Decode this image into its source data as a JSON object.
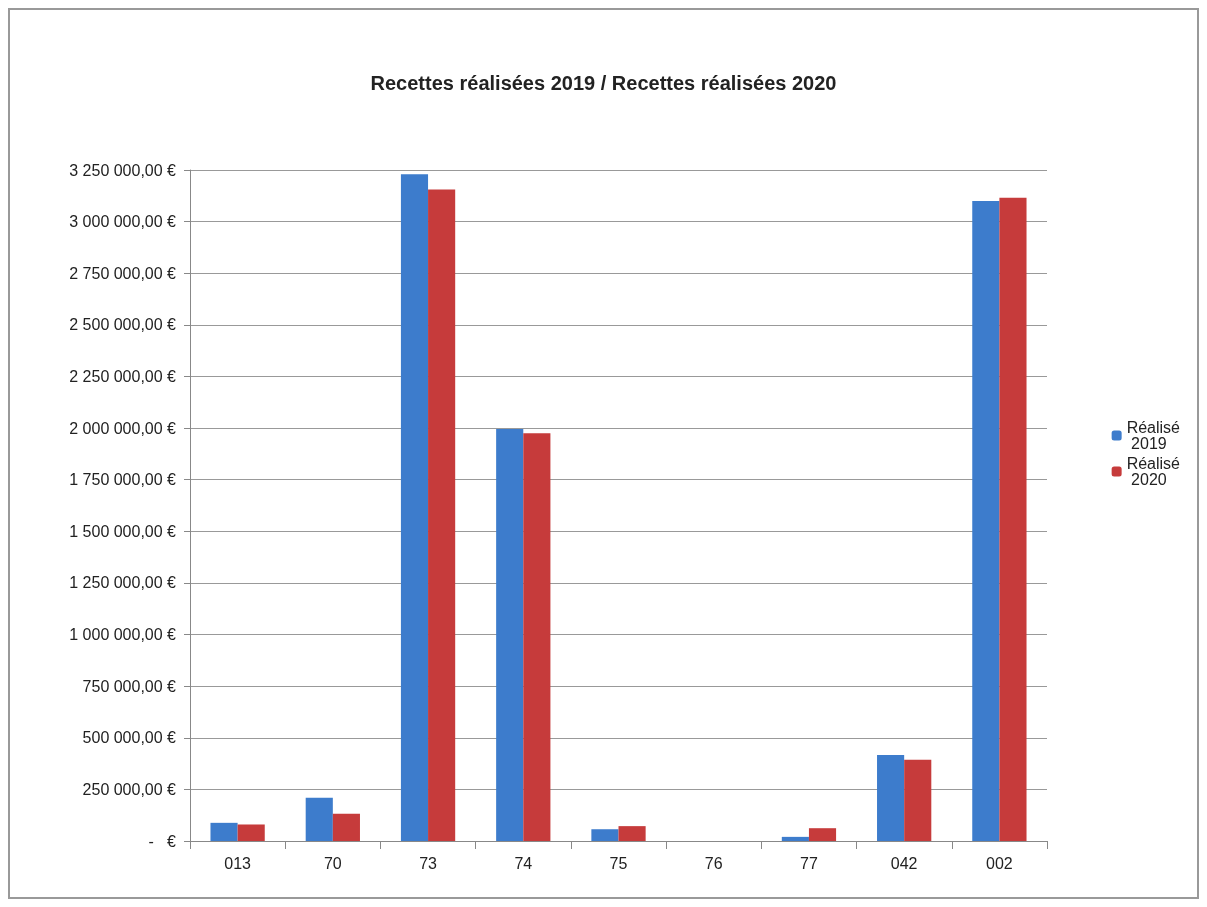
{
  "chart_data": {
    "type": "bar",
    "title": "Recettes réalisées 2019 / Recettes réalisées 2020",
    "categories": [
      "013",
      "70",
      "73",
      "74",
      "75",
      "76",
      "77",
      "042",
      "002"
    ],
    "series": [
      {
        "name": "Réalisé 2019",
        "color": "#3d7ccc",
        "values": [
          88000,
          210000,
          3230000,
          1995000,
          57000,
          0,
          20000,
          417000,
          3100000
        ]
      },
      {
        "name": "Réalisé 2020",
        "color": "#c63b3b",
        "values": [
          80000,
          132000,
          3155000,
          1975000,
          72000,
          0,
          62000,
          393000,
          3115000
        ]
      }
    ],
    "ylim": [
      0,
      3250000
    ],
    "yticks": [
      {
        "value": 0,
        "label": "-   €"
      },
      {
        "value": 250000,
        "label": "250 000,00 €"
      },
      {
        "value": 500000,
        "label": "500 000,00 €"
      },
      {
        "value": 750000,
        "label": "750 000,00 €"
      },
      {
        "value": 1000000,
        "label": "1 000 000,00 €"
      },
      {
        "value": 1250000,
        "label": "1 250 000,00 €"
      },
      {
        "value": 1500000,
        "label": "1 500 000,00 €"
      },
      {
        "value": 1750000,
        "label": "1 750 000,00 €"
      },
      {
        "value": 2000000,
        "label": "2 000 000,00 €"
      },
      {
        "value": 2250000,
        "label": "2 250 000,00 €"
      },
      {
        "value": 2500000,
        "label": "2 500 000,00 €"
      },
      {
        "value": 2750000,
        "label": "2 750 000,00 €"
      },
      {
        "value": 3000000,
        "label": "3 000 000,00 €"
      },
      {
        "value": 3250000,
        "label": "3 250 000,00 €"
      }
    ],
    "grid": "y",
    "legend": "right"
  }
}
